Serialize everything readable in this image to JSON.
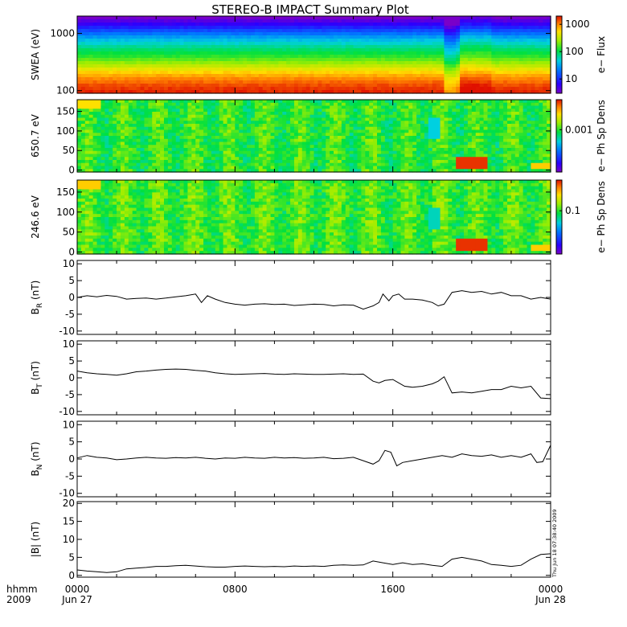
{
  "title": "STEREO-B IMPACT Summary Plot",
  "footer": {
    "row_labels": [
      "hhmm",
      "2009"
    ],
    "x_ticks": [
      {
        "hour": 0,
        "time": "0000",
        "date": "Jun 27"
      },
      {
        "hour": 8,
        "time": "0800",
        "date": ""
      },
      {
        "hour": 16,
        "time": "1600",
        "date": ""
      },
      {
        "hour": 24,
        "time": "0000",
        "date": "Jun 28"
      }
    ],
    "stamp": "Thu Jun 18 07:38:40 2009"
  },
  "colors": {
    "line": "#000000",
    "frame": "#000000"
  },
  "chart_data": [
    {
      "type": "heatmap",
      "name": "swea",
      "ylabel": "SWEA (eV)",
      "yscale": "log",
      "ylim": [
        90,
        2000
      ],
      "yticks": [
        {
          "v": 100,
          "label": "100"
        },
        {
          "v": 1000,
          "label": "1000"
        }
      ],
      "colorbar": {
        "label": "e− Flux",
        "scale": "log",
        "range": [
          3,
          2000
        ],
        "ticks": [
          {
            "v": 10,
            "label": "10"
          },
          {
            "v": 100,
            "label": "100"
          },
          {
            "v": 1000,
            "label": "1000"
          }
        ]
      },
      "bands": [
        {
          "y": 1800,
          "level": 0.02
        },
        {
          "y": 1400,
          "level": 0.12
        },
        {
          "y": 1100,
          "level": 0.24
        },
        {
          "y": 800,
          "level": 0.38
        },
        {
          "y": 550,
          "level": 0.5
        },
        {
          "y": 400,
          "level": 0.58
        },
        {
          "y": 300,
          "level": 0.68
        },
        {
          "y": 230,
          "level": 0.78
        },
        {
          "y": 170,
          "level": 0.88
        },
        {
          "y": 130,
          "level": 0.94
        },
        {
          "y": 100,
          "level": 0.98
        }
      ],
      "events": [
        {
          "start": 18.6,
          "end": 19.3,
          "shift": -0.12
        },
        {
          "start": 19.3,
          "end": 20.9,
          "shift": 0.04
        }
      ]
    },
    {
      "type": "heatmap",
      "name": "pad650",
      "ylabel": "650.7 eV",
      "ylim": [
        -5,
        180
      ],
      "yticks": [
        {
          "v": 0,
          "label": "0"
        },
        {
          "v": 50,
          "label": "50"
        },
        {
          "v": 100,
          "label": "100"
        },
        {
          "v": 150,
          "label": "150"
        }
      ],
      "colorbar": {
        "label": "e− Ph Sp Dens",
        "scale": "log",
        "range": [
          8e-05,
          0.006
        ],
        "ticks": [
          {
            "v": 0.001,
            "label": "0.001"
          }
        ]
      },
      "base_level": 0.58,
      "events": [
        {
          "start": 19.2,
          "end": 20.8,
          "ymin": 0,
          "ymax": 30,
          "level": 0.97
        },
        {
          "start": 23.0,
          "end": 24.0,
          "ymin": 0,
          "ymax": 20,
          "level": 0.82
        },
        {
          "start": 0.0,
          "end": 1.2,
          "ymin": 160,
          "ymax": 180,
          "level": 0.8
        },
        {
          "start": 17.8,
          "end": 18.3,
          "ymin": 80,
          "ymax": 130,
          "level": 0.42
        }
      ]
    },
    {
      "type": "heatmap",
      "name": "pad246",
      "ylabel": "246.6 eV",
      "ylim": [
        -5,
        180
      ],
      "yticks": [
        {
          "v": 0,
          "label": "0"
        },
        {
          "v": 50,
          "label": "50"
        },
        {
          "v": 100,
          "label": "100"
        },
        {
          "v": 150,
          "label": "150"
        }
      ],
      "colorbar": {
        "label": "e− Ph Sp Dens",
        "scale": "log",
        "range": [
          0.008,
          0.6
        ],
        "ticks": [
          {
            "v": 0.1,
            "label": "0.1"
          }
        ]
      },
      "base_level": 0.6,
      "events": [
        {
          "start": 19.2,
          "end": 20.8,
          "ymin": 0,
          "ymax": 30,
          "level": 0.97
        },
        {
          "start": 23.0,
          "end": 24.0,
          "ymin": 0,
          "ymax": 20,
          "level": 0.82
        },
        {
          "start": 0.0,
          "end": 1.2,
          "ymin": 155,
          "ymax": 180,
          "level": 0.82
        },
        {
          "start": 17.8,
          "end": 18.3,
          "ymin": 60,
          "ymax": 110,
          "level": 0.45
        }
      ]
    },
    {
      "type": "line",
      "name": "br",
      "ylabel": "B_R (nT)",
      "ylim": [
        -11,
        11
      ],
      "yticks": [
        -10,
        -5,
        0,
        5,
        10
      ],
      "x": [
        0,
        0.5,
        1,
        1.5,
        2,
        2.5,
        3,
        3.5,
        4,
        4.5,
        5,
        5.5,
        6,
        6.3,
        6.6,
        7,
        7.5,
        8,
        8.5,
        9,
        9.5,
        10,
        10.5,
        11,
        11.5,
        12,
        12.5,
        13,
        13.5,
        14,
        14.5,
        15,
        15.3,
        15.5,
        15.8,
        16,
        16.3,
        16.6,
        17,
        17.5,
        18,
        18.3,
        18.6,
        19,
        19.5,
        20,
        20.5,
        21,
        21.5,
        22,
        22.5,
        23,
        23.5,
        24
      ],
      "y": [
        0,
        0.5,
        0.2,
        0.6,
        0.3,
        -0.5,
        -0.3,
        -0.2,
        -0.5,
        -0.2,
        0.2,
        0.5,
        1,
        -1.5,
        0.5,
        -0.5,
        -1.5,
        -2,
        -2.3,
        -2,
        -1.9,
        -2.1,
        -2,
        -2.4,
        -2.2,
        -2,
        -2.1,
        -2.5,
        -2.2,
        -2.3,
        -3.5,
        -2.5,
        -1.5,
        1,
        -1,
        0.5,
        1,
        -0.5,
        -0.5,
        -0.8,
        -1.5,
        -2.5,
        -2,
        1.5,
        2,
        1.5,
        1.8,
        1,
        1.5,
        0.5,
        0.5,
        -0.5,
        0,
        -0.5
      ]
    },
    {
      "type": "line",
      "name": "bt",
      "ylabel": "B_T (nT)",
      "ylim": [
        -11,
        11
      ],
      "yticks": [
        -10,
        -5,
        0,
        5,
        10
      ],
      "x": [
        0,
        0.5,
        1,
        1.5,
        2,
        2.5,
        3,
        3.5,
        4,
        4.5,
        5,
        5.5,
        6,
        6.5,
        7,
        7.5,
        8,
        8.5,
        9,
        9.5,
        10,
        10.5,
        11,
        11.5,
        12,
        12.5,
        13,
        13.5,
        14,
        14.5,
        15,
        15.3,
        15.6,
        16,
        16.3,
        16.6,
        17,
        17.5,
        18,
        18.3,
        18.6,
        19,
        19.5,
        20,
        20.5,
        21,
        21.5,
        22,
        22.5,
        23,
        23.5,
        24
      ],
      "y": [
        2,
        1.5,
        1.2,
        1.0,
        0.8,
        1.2,
        1.8,
        2,
        2.3,
        2.5,
        2.6,
        2.5,
        2.2,
        2,
        1.5,
        1.2,
        1,
        1.1,
        1.2,
        1.3,
        1.1,
        1,
        1.2,
        1.1,
        1,
        1,
        1.1,
        1.2,
        1,
        1.1,
        -1,
        -1.5,
        -0.8,
        -0.5,
        -1.5,
        -2.5,
        -2.8,
        -2.5,
        -1.8,
        -1,
        0.3,
        -4.5,
        -4.2,
        -4.5,
        -4,
        -3.5,
        -3.5,
        -2.5,
        -3,
        -2.5,
        -6,
        -6.2
      ]
    },
    {
      "type": "line",
      "name": "bn",
      "ylabel": "B_N (nT)",
      "ylim": [
        -11,
        11
      ],
      "yticks": [
        -10,
        -5,
        0,
        5,
        10
      ],
      "x": [
        0,
        0.5,
        1,
        1.5,
        2,
        2.5,
        3,
        3.5,
        4,
        4.5,
        5,
        5.5,
        6,
        6.5,
        7,
        7.5,
        8,
        8.5,
        9,
        9.5,
        10,
        10.5,
        11,
        11.5,
        12,
        12.5,
        13,
        13.5,
        14,
        14.5,
        15,
        15.3,
        15.6,
        15.9,
        16.2,
        16.5,
        17,
        17.5,
        18,
        18.5,
        19,
        19.5,
        20,
        20.5,
        21,
        21.5,
        22,
        22.5,
        23,
        23.3,
        23.6,
        24
      ],
      "y": [
        0.3,
        1,
        0.5,
        0.3,
        -0.2,
        0,
        0.3,
        0.5,
        0.3,
        0.2,
        0.4,
        0.3,
        0.5,
        0.2,
        0,
        0.3,
        0.2,
        0.5,
        0.3,
        0.2,
        0.5,
        0.3,
        0.4,
        0.2,
        0.3,
        0.5,
        0.1,
        0.2,
        0.5,
        -0.5,
        -1.5,
        -0.5,
        2.5,
        2,
        -2,
        -1,
        -0.5,
        0,
        0.5,
        1,
        0.5,
        1.5,
        1,
        0.8,
        1.2,
        0.5,
        1,
        0.5,
        1.5,
        -1,
        -0.8,
        4
      ]
    },
    {
      "type": "line",
      "name": "bmag",
      "ylabel": "|B| (nT)",
      "ylim": [
        -0.5,
        20.5
      ],
      "yticks": [
        0,
        5,
        10,
        15,
        20
      ],
      "x": [
        0,
        0.5,
        1,
        1.5,
        2,
        2.5,
        3,
        3.5,
        4,
        4.5,
        5,
        5.5,
        6,
        6.5,
        7,
        7.5,
        8,
        8.5,
        9,
        9.5,
        10,
        10.5,
        11,
        11.5,
        12,
        12.5,
        13,
        13.5,
        14,
        14.5,
        15,
        15.5,
        16,
        16.5,
        17,
        17.5,
        18,
        18.5,
        19,
        19.5,
        20,
        20.5,
        21,
        21.5,
        22,
        22.5,
        23,
        23.5,
        24
      ],
      "y": [
        1.5,
        1.2,
        1.0,
        0.8,
        1.0,
        1.8,
        2.0,
        2.2,
        2.5,
        2.5,
        2.7,
        2.8,
        2.6,
        2.4,
        2.3,
        2.3,
        2.5,
        2.6,
        2.5,
        2.4,
        2.5,
        2.4,
        2.6,
        2.5,
        2.6,
        2.5,
        2.8,
        2.9,
        2.8,
        2.9,
        4.0,
        3.5,
        3.0,
        3.5,
        3.0,
        3.2,
        2.8,
        2.5,
        4.5,
        5.0,
        4.5,
        4.0,
        3.0,
        2.8,
        2.5,
        2.8,
        4.5,
        5.8,
        6.0
      ]
    }
  ]
}
